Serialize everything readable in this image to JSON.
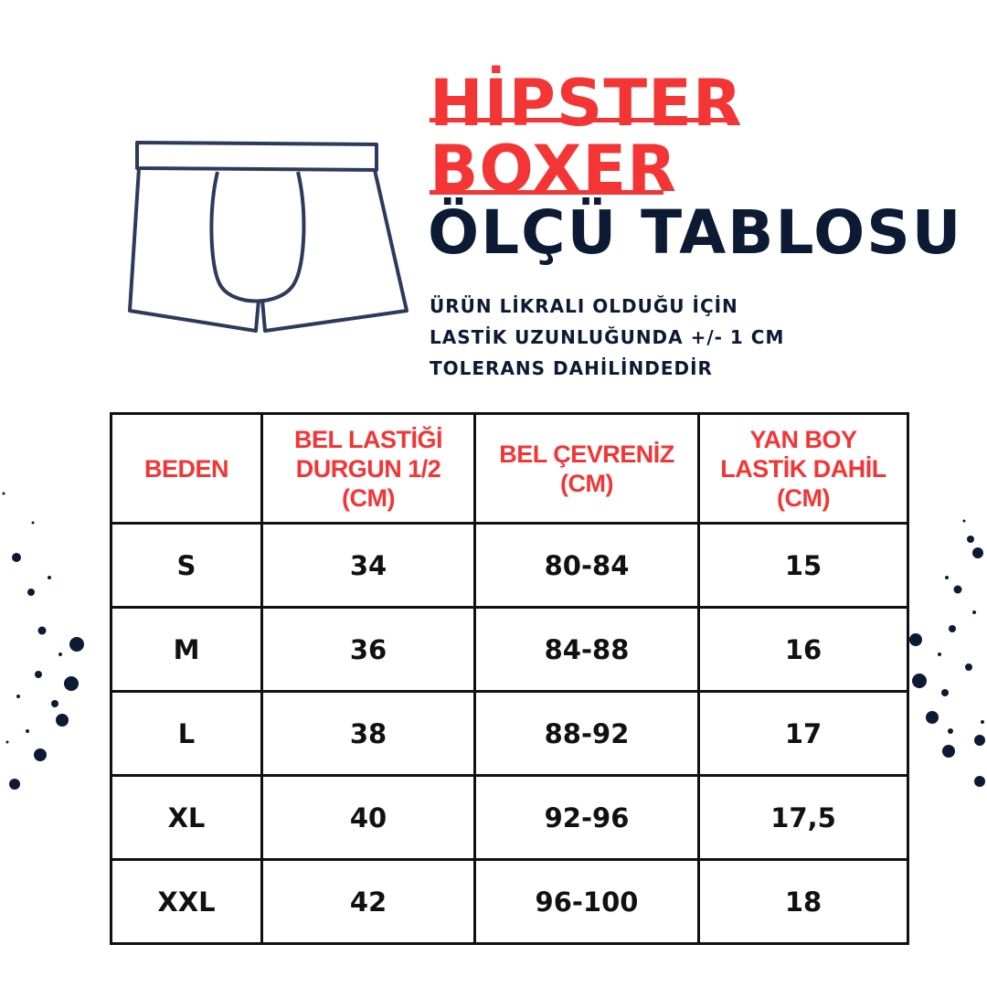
{
  "title": {
    "line1": "HİPSTER",
    "line2": "BOXER",
    "line3": "ÖLÇÜ TABLOSU"
  },
  "note": [
    "ÜRÜN LİKRALI OLDUĞU İÇİN",
    "LASTİK UZUNLUĞUNDA +/- 1 CM",
    "TOLERANS DAHİLİNDEDİR"
  ],
  "colors": {
    "accent": "#f33535",
    "dark": "#0c1a33"
  },
  "illustration": "boxer-brief-outline",
  "table": {
    "headers": [
      "BEDEN",
      [
        "BEL LASTİĞİ",
        "DURGUN 1/2",
        "(CM)"
      ],
      [
        "BEL ÇEVRENİZ",
        "(CM)"
      ],
      [
        "YAN BOY",
        "LASTİK DAHİL",
        "(CM)"
      ]
    ],
    "rows": [
      [
        "S",
        "34",
        "80-84",
        "15"
      ],
      [
        "M",
        "36",
        "84-88",
        "16"
      ],
      [
        "L",
        "38",
        "88-92",
        "17"
      ],
      [
        "XL",
        "40",
        "92-96",
        "17,5"
      ],
      [
        "XXL",
        "42",
        "96-100",
        "18"
      ]
    ]
  }
}
